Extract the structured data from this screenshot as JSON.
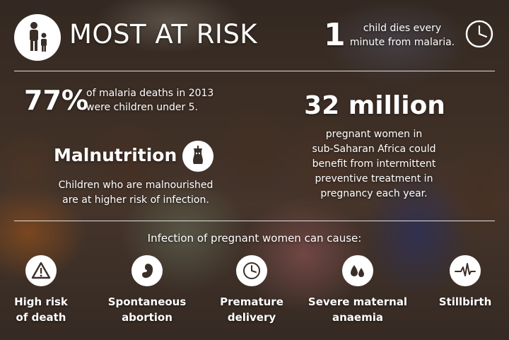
{
  "header": {
    "title": "MOST AT RISK",
    "stat_number": "1",
    "stat_text_line1": "child dies every",
    "stat_text_line2": "minute from malaria."
  },
  "deaths": {
    "percent": "77%",
    "text_line1": "of malaria deaths in 2013",
    "text_line2": "were children under 5."
  },
  "pregnant": {
    "number": "32 million",
    "text_line1": "pregnant women in",
    "text_line2": "sub-Saharan Africa could",
    "text_line3": "benefit from intermittent",
    "text_line4": "preventive treatment in",
    "text_line5": "pregnancy each year."
  },
  "malnutrition": {
    "title": "Malnutrition",
    "text_line1": "Children who are malnourished",
    "text_line2": "are at higher risk of infection."
  },
  "infection": {
    "heading": "Infection of pregnant women can cause:",
    "items": [
      {
        "icon": "warning-icon",
        "line1": "High risk",
        "line2": "of death"
      },
      {
        "icon": "fetus-icon",
        "line1": "Spontaneous",
        "line2": "abortion"
      },
      {
        "icon": "clock-icon",
        "line1": "Premature",
        "line2": "delivery"
      },
      {
        "icon": "blood-drops-icon",
        "line1": "Severe maternal",
        "line2": "anaemia"
      },
      {
        "icon": "heartbeat-icon",
        "line1": "Stillbirth",
        "line2": ""
      }
    ]
  },
  "colors": {
    "icon_fill": "#ffffff",
    "icon_glyph": "#3a2e28"
  }
}
